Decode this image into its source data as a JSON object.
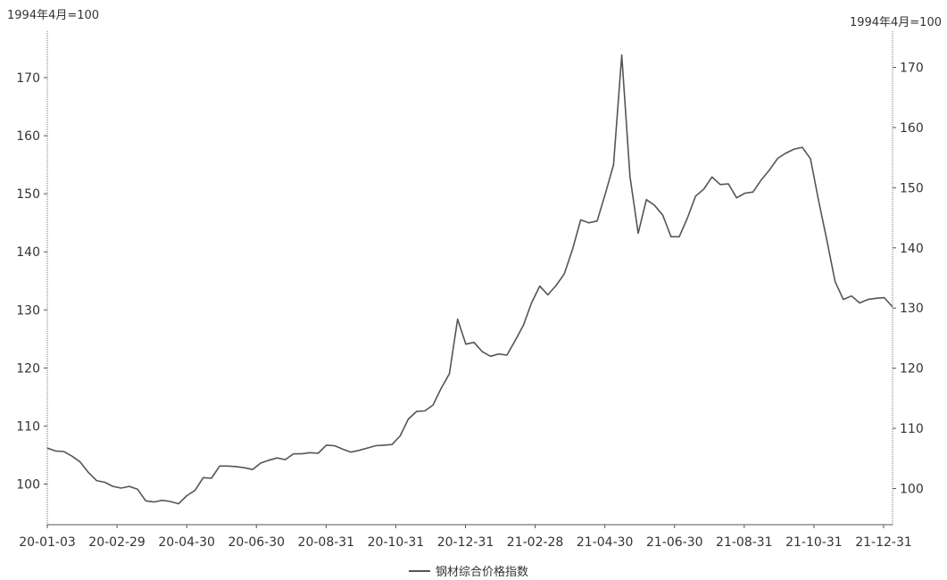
{
  "chart_data": {
    "type": "line",
    "y_unit_left": "1994年4月=100",
    "y_unit_right": "1994年4月=100",
    "x_tick_labels": [
      "20-01-03",
      "20-02-29",
      "20-04-30",
      "20-06-30",
      "20-08-31",
      "20-10-31",
      "20-12-31",
      "21-02-28",
      "21-04-30",
      "21-06-30",
      "21-08-31",
      "21-10-31",
      "21-12-31"
    ],
    "ylim_left": [
      93,
      178
    ],
    "yticks_left": [
      100,
      110,
      120,
      130,
      140,
      150,
      160,
      170
    ],
    "ylim_right": [
      94,
      176
    ],
    "yticks_right": [
      100,
      110,
      120,
      130,
      140,
      150,
      160,
      170
    ],
    "grid": false,
    "legend_position": "bottom-center",
    "series": [
      {
        "name": "钢材综合价格指数",
        "color": "#555555",
        "values": [
          106.2,
          105.7,
          105.6,
          104.8,
          103.8,
          102.0,
          100.6,
          100.3,
          99.6,
          99.3,
          99.6,
          99.1,
          97.1,
          96.9,
          97.2,
          97.0,
          96.6,
          98.0,
          98.9,
          101.1,
          101.0,
          103.1,
          103.1,
          103.0,
          102.8,
          102.5,
          103.6,
          104.1,
          104.5,
          104.2,
          105.2,
          105.2,
          105.4,
          105.3,
          106.7,
          106.6,
          106.0,
          105.5,
          105.8,
          106.2,
          106.6,
          106.7,
          106.8,
          108.3,
          111.2,
          112.5,
          112.6,
          113.6,
          116.5,
          119.0,
          128.4,
          124.1,
          124.4,
          122.8,
          122.0,
          122.4,
          122.2,
          124.7,
          127.3,
          131.2,
          134.1,
          132.6,
          134.2,
          136.2,
          140.4,
          145.5,
          145.0,
          145.3,
          150.0,
          155.0,
          173.9,
          153.0,
          143.2,
          149.0,
          148.0,
          146.3,
          142.6,
          142.6,
          145.8,
          149.6,
          150.8,
          152.9,
          151.6,
          151.7,
          149.3,
          150.1,
          150.3,
          152.4,
          154.1,
          156.1,
          157.0,
          157.7,
          158.0,
          156.0,
          148.7,
          142.0,
          134.9,
          131.8,
          132.4,
          131.2,
          131.8,
          132.0,
          132.1,
          130.5
        ]
      }
    ]
  }
}
